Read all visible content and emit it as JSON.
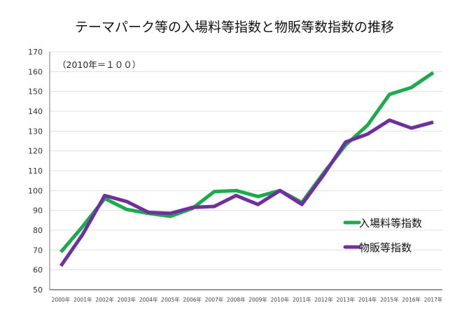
{
  "chart_data": {
    "type": "line",
    "title": "テーマパーク等の入場料等指数と物販等数指数の推移",
    "annotation": "（2010年＝１００）",
    "xlabel": "",
    "ylabel": "",
    "ylim": [
      50,
      170
    ],
    "yticks": [
      50,
      60,
      70,
      80,
      90,
      100,
      110,
      120,
      130,
      140,
      150,
      160,
      170
    ],
    "grid": true,
    "legend_position": "right",
    "categories": [
      "2000年",
      "2001年",
      "2002年",
      "2003年",
      "2004年",
      "2005年",
      "2006年",
      "2007年",
      "2008年",
      "2009年",
      "2010年",
      "2011年",
      "2012年",
      "2013年",
      "2014年",
      "2015年",
      "2016年",
      "2017年"
    ],
    "series": [
      {
        "name": "入場料等指数",
        "color": "#1aab4b",
        "values": [
          69,
          82,
          96,
          90.5,
          88.5,
          87,
          91,
          99.5,
          100,
          97,
          100,
          94,
          109,
          123,
          133,
          148.5,
          152,
          159.5
        ]
      },
      {
        "name": "物販等指数",
        "color": "#6f2fa0",
        "values": [
          62,
          78,
          97.5,
          94.5,
          89,
          88.5,
          91.5,
          92,
          97.5,
          93,
          100,
          93,
          108,
          124.5,
          128.5,
          135.5,
          131.5,
          134.5
        ]
      }
    ]
  }
}
